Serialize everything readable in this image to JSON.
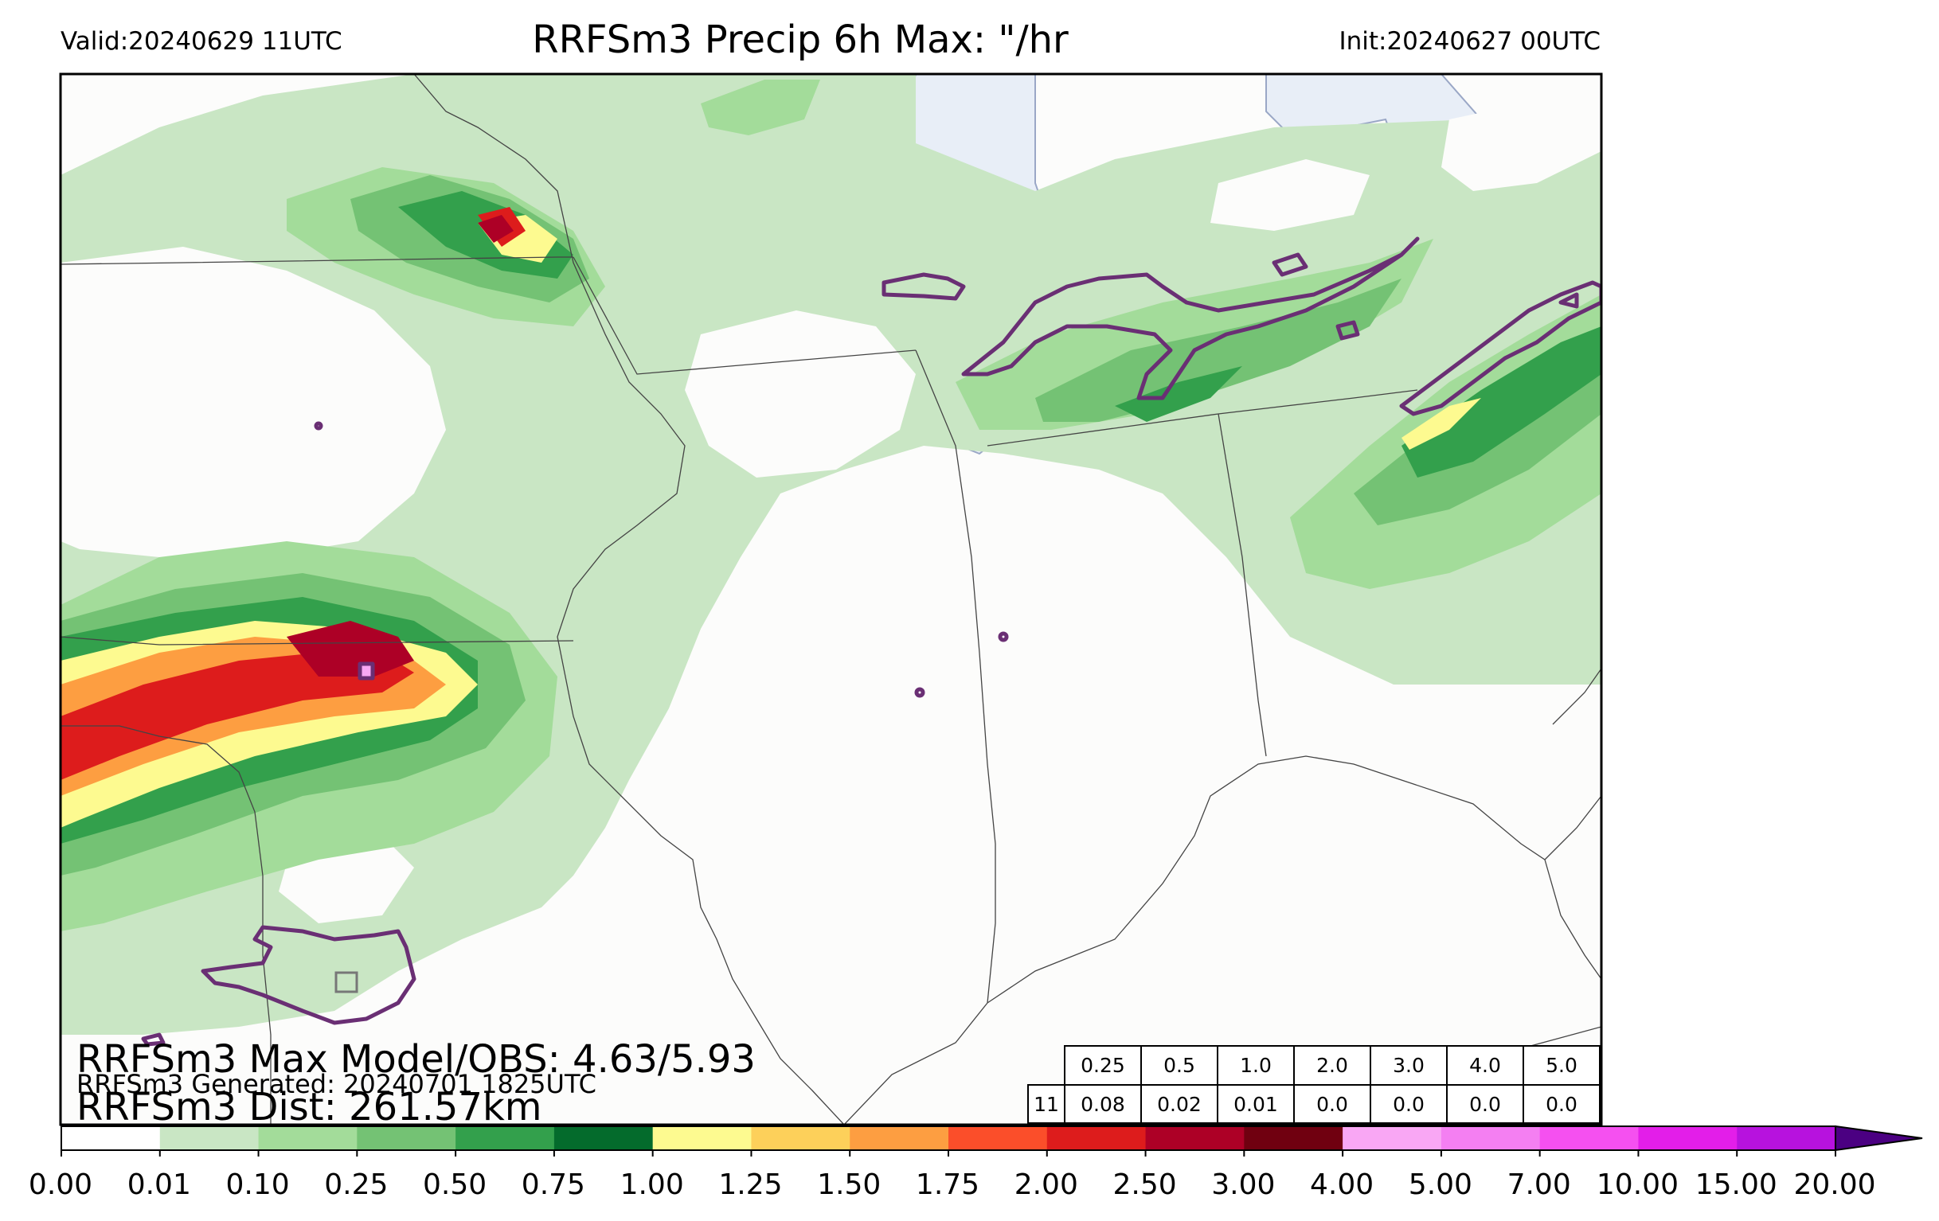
{
  "header": {
    "valid": "Valid:20240629 11UTC",
    "title": "RRFSm3 Precip 6h Max: \"/hr",
    "init": "Init:20240627 00UTC"
  },
  "overlay": {
    "max_model_obs": "RRFSm3 Max Model/OBS: 4.63/5.93",
    "generated": "RRFSm3 Generated: 20240701 1825UTC",
    "distance": "RRFSm3 Dist: 261.57km"
  },
  "stats_table": {
    "thresholds": [
      "0.25",
      "0.5",
      "1.0",
      "2.0",
      "3.0",
      "4.0",
      "5.0"
    ],
    "row_label": "11",
    "values": [
      "0.08",
      "0.02",
      "0.01",
      "0.0",
      "0.0",
      "0.0",
      "0.0"
    ]
  },
  "colorbar": {
    "ticks": [
      "0.00",
      "0.01",
      "0.10",
      "0.25",
      "0.50",
      "0.75",
      "1.00",
      "1.25",
      "1.50",
      "1.75",
      "2.00",
      "2.50",
      "3.00",
      "4.00",
      "5.00",
      "7.00",
      "10.00",
      "15.00",
      "20.00"
    ],
    "colors": [
      "#ffffff",
      "#c9e6c4",
      "#a3dc9a",
      "#74c274",
      "#33a04c",
      "#046b2c",
      "#fdfa90",
      "#fdd05a",
      "#fd9e41",
      "#fb4e2a",
      "#dd1c1c",
      "#ad0026",
      "#700010",
      "#f9a7f4",
      "#f47ff2",
      "#f550f0",
      "#e31ee9",
      "#b712de",
      "#8a08c8"
    ],
    "extend_color": "#4b0082"
  },
  "colors": {
    "ocean": "#e8eef7",
    "land": "#fcfcfb",
    "contour": "#6a2f74"
  }
}
